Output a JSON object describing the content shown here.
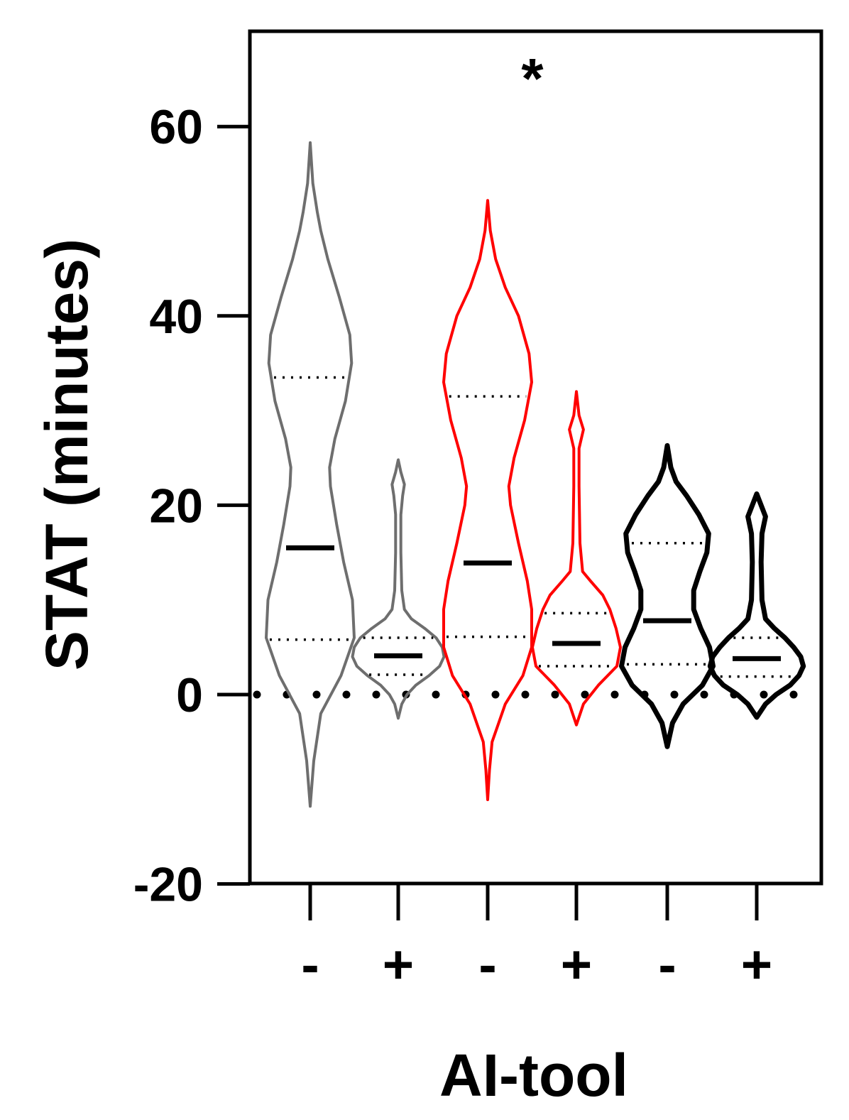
{
  "chart_data": {
    "type": "violin",
    "title": "",
    "xlabel": "AI-tool",
    "ylabel": "STAT (minutes)",
    "ylim": [
      -20,
      70
    ],
    "yticks": [
      -20,
      0,
      20,
      40,
      60
    ],
    "y_tick_labels": [
      "-20",
      "0",
      "20",
      "40",
      "60"
    ],
    "grid": false,
    "legend": "none",
    "reference_line": {
      "y": 0,
      "style": "dotted"
    },
    "annotation": {
      "text": "*",
      "x_between": [
        2,
        3
      ]
    },
    "categories": [
      "-",
      "+",
      "-",
      "+",
      "-",
      "+"
    ],
    "violins": [
      {
        "category": "-",
        "color": "#6e6e6e",
        "min": -11.8,
        "max": 58.3,
        "median": 15.5,
        "q1": 5.8,
        "q3": 33.5,
        "density": [
          [
            -11.8,
            0
          ],
          [
            -7,
            0.04
          ],
          [
            -2,
            0.12
          ],
          [
            2,
            0.35
          ],
          [
            6,
            0.5
          ],
          [
            10,
            0.48
          ],
          [
            14,
            0.38
          ],
          [
            18,
            0.3
          ],
          [
            22,
            0.23
          ],
          [
            24,
            0.22
          ],
          [
            27,
            0.28
          ],
          [
            31,
            0.4
          ],
          [
            35,
            0.47
          ],
          [
            38,
            0.45
          ],
          [
            42,
            0.33
          ],
          [
            46,
            0.2
          ],
          [
            49,
            0.12
          ],
          [
            51,
            0.08
          ],
          [
            54,
            0.03
          ],
          [
            58.3,
            0
          ]
        ]
      },
      {
        "category": "+",
        "color": "#6e6e6e",
        "min": -2.5,
        "max": 24.8,
        "median": 4.1,
        "q1": 2.1,
        "q3": 6.0,
        "density": [
          [
            -2.5,
            0
          ],
          [
            -1,
            0.04
          ],
          [
            0,
            0.1
          ],
          [
            1,
            0.2
          ],
          [
            2,
            0.35
          ],
          [
            3,
            0.47
          ],
          [
            4,
            0.52
          ],
          [
            5,
            0.5
          ],
          [
            6,
            0.43
          ],
          [
            7,
            0.3
          ],
          [
            8,
            0.15
          ],
          [
            9,
            0.07
          ],
          [
            11,
            0.04
          ],
          [
            15,
            0.03
          ],
          [
            19,
            0.03
          ],
          [
            21,
            0.05
          ],
          [
            22.2,
            0.07
          ],
          [
            23.5,
            0.03
          ],
          [
            24.8,
            0
          ]
        ]
      },
      {
        "category": "-",
        "color": "#ff0000",
        "min": -11.1,
        "max": 52.2,
        "median": 13.9,
        "q1": 6.1,
        "q3": 31.5,
        "density": [
          [
            -11.1,
            0
          ],
          [
            -8,
            0.02
          ],
          [
            -5,
            0.05
          ],
          [
            -1,
            0.2
          ],
          [
            2,
            0.4
          ],
          [
            5,
            0.5
          ],
          [
            9,
            0.5
          ],
          [
            12,
            0.45
          ],
          [
            16,
            0.35
          ],
          [
            20,
            0.26
          ],
          [
            22,
            0.24
          ],
          [
            25,
            0.3
          ],
          [
            29,
            0.42
          ],
          [
            33,
            0.5
          ],
          [
            36,
            0.47
          ],
          [
            40,
            0.35
          ],
          [
            43,
            0.2
          ],
          [
            46,
            0.09
          ],
          [
            49,
            0.03
          ],
          [
            52.2,
            0
          ]
        ]
      },
      {
        "category": "+",
        "color": "#ff0000",
        "min": -3.2,
        "max": 32.0,
        "median": 5.4,
        "q1": 3.0,
        "q3": 8.6,
        "density": [
          [
            -3.2,
            0
          ],
          [
            -1,
            0.08
          ],
          [
            1,
            0.25
          ],
          [
            3,
            0.46
          ],
          [
            5,
            0.5
          ],
          [
            7,
            0.45
          ],
          [
            9,
            0.38
          ],
          [
            10.5,
            0.3
          ],
          [
            12,
            0.16
          ],
          [
            13,
            0.07
          ],
          [
            16,
            0.04
          ],
          [
            22,
            0.03
          ],
          [
            26,
            0.03
          ],
          [
            28,
            0.08
          ],
          [
            29.5,
            0.03
          ],
          [
            32,
            0
          ]
        ]
      },
      {
        "category": "-",
        "color": "#000000",
        "min": -5.5,
        "max": 26.3,
        "median": 7.8,
        "q1": 3.2,
        "q3": 16.0,
        "density": [
          [
            -5.5,
            0
          ],
          [
            -3,
            0.06
          ],
          [
            -1,
            0.18
          ],
          [
            1,
            0.4
          ],
          [
            3,
            0.52
          ],
          [
            5,
            0.48
          ],
          [
            7,
            0.38
          ],
          [
            9,
            0.3
          ],
          [
            11,
            0.3
          ],
          [
            13,
            0.37
          ],
          [
            15,
            0.45
          ],
          [
            17,
            0.47
          ],
          [
            19,
            0.36
          ],
          [
            21,
            0.22
          ],
          [
            22.5,
            0.1
          ],
          [
            24,
            0.04
          ],
          [
            26.3,
            0
          ]
        ]
      },
      {
        "category": "+",
        "color": "#000000",
        "min": -2.4,
        "max": 21.2,
        "median": 3.8,
        "q1": 1.9,
        "q3": 6.0,
        "density": [
          [
            -2.4,
            0
          ],
          [
            -1,
            0.1
          ],
          [
            0,
            0.22
          ],
          [
            1,
            0.38
          ],
          [
            2,
            0.48
          ],
          [
            3,
            0.53
          ],
          [
            4,
            0.5
          ],
          [
            5,
            0.42
          ],
          [
            6,
            0.32
          ],
          [
            7,
            0.2
          ],
          [
            8,
            0.1
          ],
          [
            10,
            0.06
          ],
          [
            14,
            0.05
          ],
          [
            17,
            0.06
          ],
          [
            18.8,
            0.1
          ],
          [
            20,
            0.05
          ],
          [
            21.2,
            0
          ]
        ]
      }
    ]
  }
}
